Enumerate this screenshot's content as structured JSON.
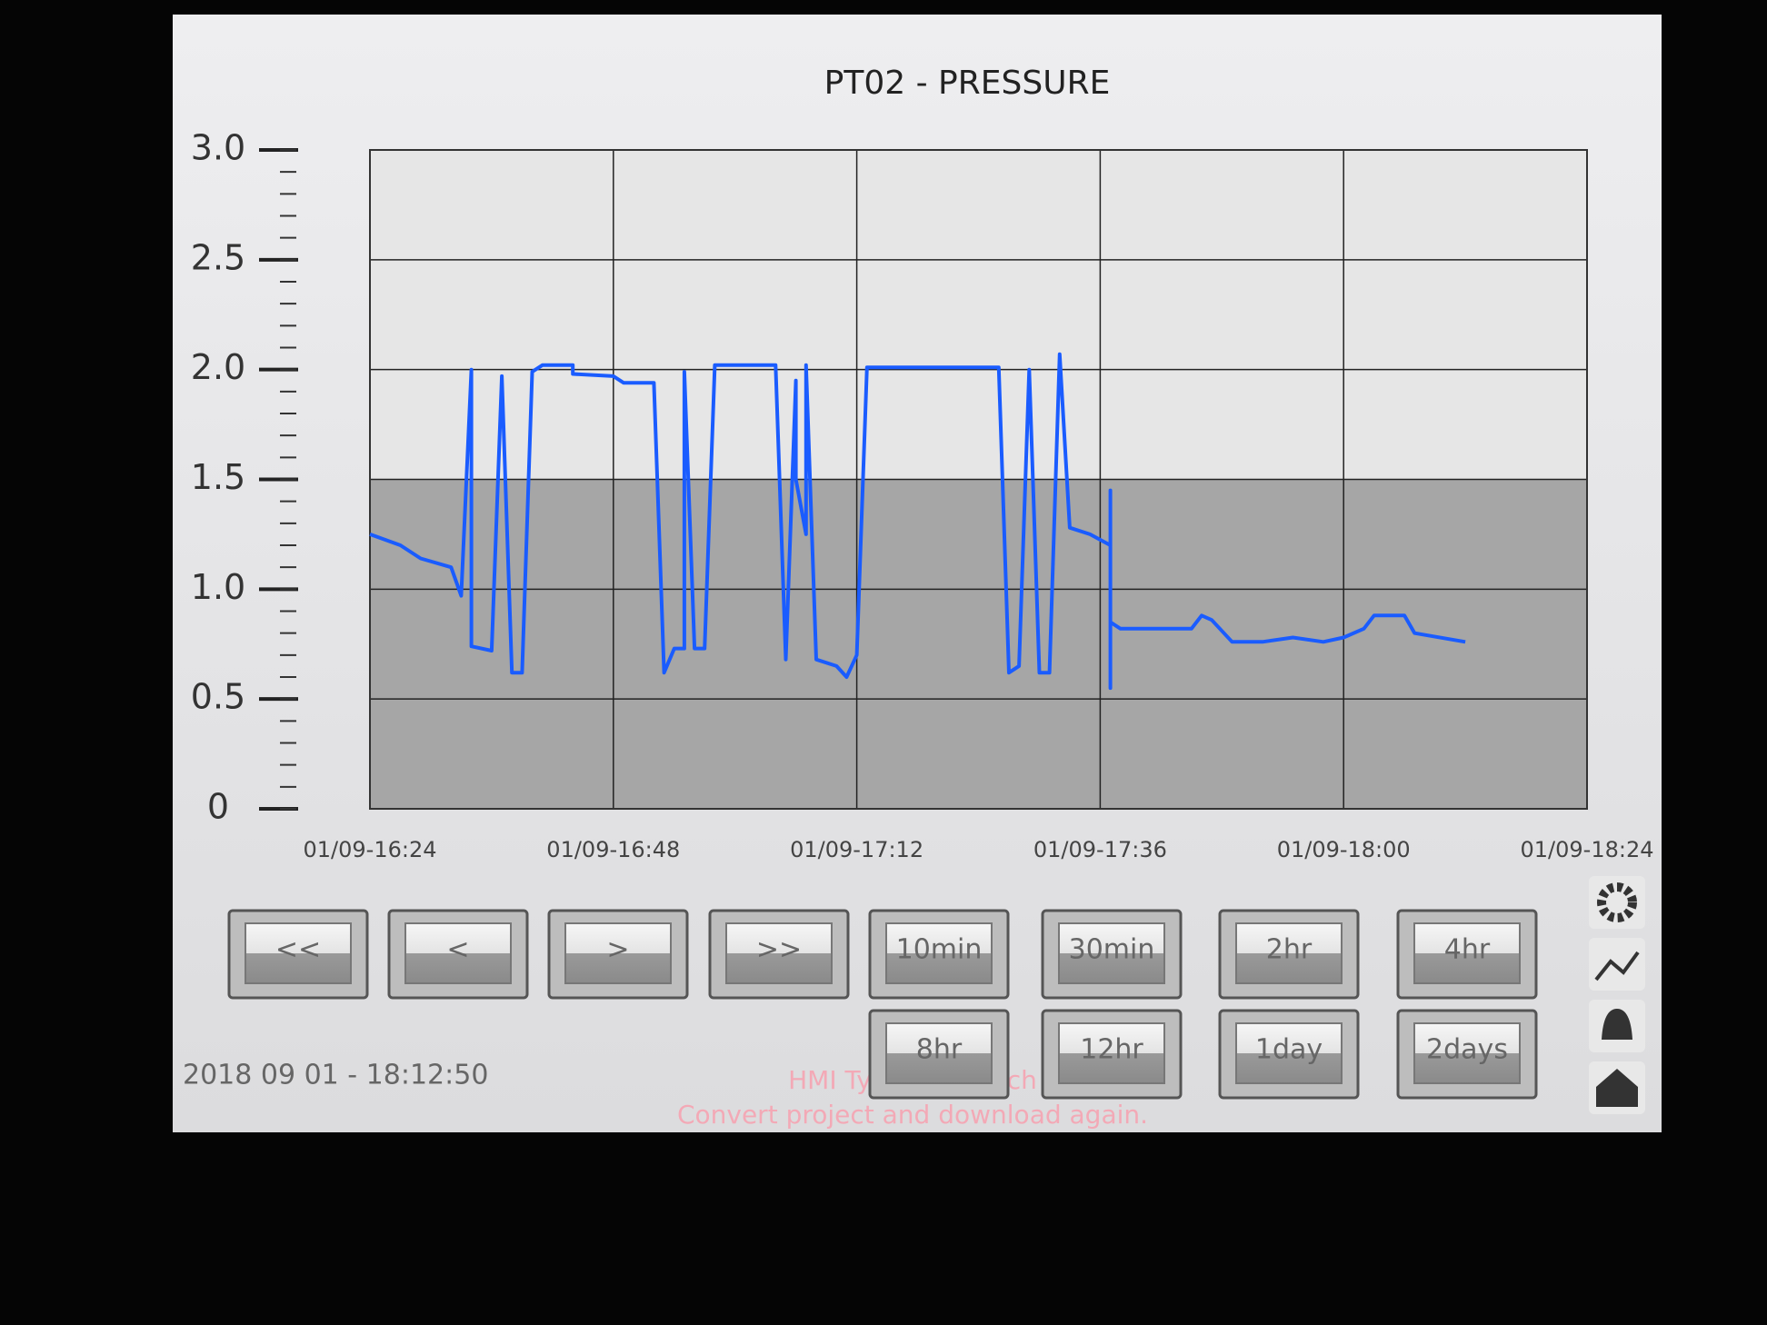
{
  "chart_data": {
    "type": "line",
    "title": "PT02 - PRESSURE",
    "x": [
      "01/09-16:24",
      "01/09-16:27",
      "01/09-16:29",
      "01/09-16:32",
      "01/09-16:33",
      "01/09-16:34",
      "01/09-16:34",
      "01/09-16:36",
      "01/09-16:37",
      "01/09-16:38",
      "01/09-16:39",
      "01/09-16:40",
      "01/09-16:41",
      "01/09-16:44",
      "01/09-16:44",
      "01/09-16:48",
      "01/09-16:49",
      "01/09-16:52",
      "01/09-16:53",
      "01/09-16:54",
      "01/09-16:55",
      "01/09-16:55",
      "01/09-16:56",
      "01/09-16:57",
      "01/09-16:58",
      "01/09-17:04",
      "01/09-17:05",
      "01/09-17:06",
      "01/09-17:06",
      "01/09-17:07",
      "01/09-17:07",
      "01/09-17:08",
      "01/09-17:10",
      "01/09-17:11",
      "01/09-17:12",
      "01/09-17:13",
      "01/09-17:26",
      "01/09-17:27",
      "01/09-17:28",
      "01/09-17:29",
      "01/09-17:30",
      "01/09-17:31",
      "01/09-17:32",
      "01/09-17:33",
      "01/09-17:35",
      "01/09-17:37",
      "01/09-17:37",
      "01/09-17:37",
      "01/09-17:37",
      "01/09-17:38",
      "01/09-17:45",
      "01/09-17:46",
      "01/09-17:47",
      "01/09-17:49",
      "01/09-17:52",
      "01/09-17:55",
      "01/09-17:58",
      "01/09-18:00",
      "01/09-18:02",
      "01/09-18:03",
      "01/09-18:06",
      "01/09-18:07",
      "01/09-18:12"
    ],
    "values": [
      1.25,
      1.2,
      1.14,
      1.1,
      0.97,
      2.0,
      0.74,
      0.72,
      1.97,
      0.62,
      0.62,
      1.99,
      2.02,
      2.02,
      1.98,
      1.97,
      1.94,
      1.94,
      0.62,
      0.73,
      0.73,
      1.99,
      0.73,
      0.73,
      2.02,
      2.02,
      0.68,
      1.95,
      1.5,
      1.25,
      2.02,
      0.68,
      0.65,
      0.6,
      0.7,
      2.01,
      2.01,
      0.62,
      0.65,
      2.0,
      0.62,
      0.62,
      2.07,
      1.28,
      1.25,
      1.2,
      1.45,
      0.55,
      0.85,
      0.82,
      0.82,
      0.88,
      0.86,
      0.76,
      0.76,
      0.78,
      0.76,
      0.78,
      0.82,
      0.88,
      0.88,
      0.8,
      0.76
    ],
    "color": "#1a5cff",
    "xlim": [
      "01/09-16:24",
      "01/09-18:24"
    ],
    "xticks": [
      "01/09-16:24",
      "01/09-16:48",
      "01/09-17:12",
      "01/09-17:36",
      "01/09-18:00",
      "01/09-18:24"
    ],
    "ylim": [
      0,
      3
    ],
    "yticks": [
      {
        "value": 3,
        "label": "3.0"
      },
      2.5,
      {
        "value": 2,
        "label": "2.0"
      },
      1.5,
      {
        "value": 1,
        "label": "1.0"
      },
      0.5,
      0
    ],
    "grid": true
  },
  "buttons": [
    [
      "<<",
      "<",
      ">",
      ">>",
      "10min",
      "30min",
      "2hr",
      "4hr"
    ],
    [
      "8hr",
      "12hr",
      "1day",
      "2days"
    ]
  ],
  "timestamp": "2018 09 01 - 18:12:50",
  "messages": [
    "HMI Type mismatch",
    "Convert project and download again."
  ]
}
